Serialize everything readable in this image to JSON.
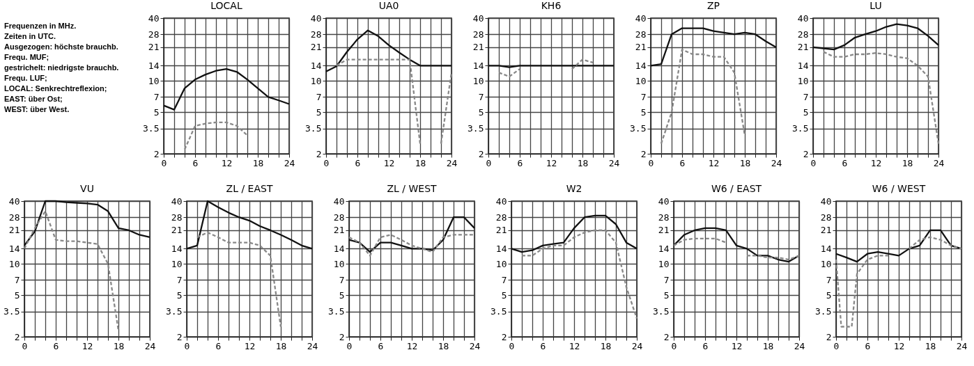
{
  "chart_data": [
    {
      "type": "other",
      "annotations": [
        "Frequenzen in MHz.",
        "Zeiten in UTC.",
        "Ausgezogen: höchste brauchb. Frequ. MUF;",
        "gestrichelt: niedrigste brauchb. Frequ. LUF;",
        "LOCAL: Senkrechtreflexion;",
        "EAST: über Ost;",
        "WEST: über West."
      ]
    },
    {
      "type": "line",
      "log": "y",
      "title": "LOCAL",
      "x": [
        0,
        2,
        4,
        6,
        8,
        10,
        12,
        14,
        16,
        18,
        20,
        22,
        24
      ],
      "series": [
        {
          "color": "#111111",
          "line_style": "solid",
          "values": [
            5.8,
            5.3,
            8.5,
            10.3,
            11.5,
            12.5,
            13,
            12.2,
            10.3,
            8.5,
            7,
            6.5,
            6
          ]
        },
        {
          "color": "#888888",
          "line_style": "dashed",
          "values": [
            null,
            null,
            2.2,
            3.7,
            3.9,
            4,
            4,
            3.7,
            3,
            null,
            null,
            null,
            null
          ]
        }
      ],
      "xlim": [
        0,
        24
      ],
      "xticks": [
        0,
        {
          "value": 2,
          "label": null
        },
        {
          "value": 4,
          "label": null
        },
        6,
        {
          "value": 8,
          "label": null
        },
        {
          "value": 10,
          "label": null
        },
        12,
        {
          "value": 14,
          "label": null
        },
        {
          "value": 16,
          "label": null
        },
        18,
        {
          "value": 20,
          "label": null
        },
        {
          "value": 22,
          "label": null
        },
        24
      ],
      "ylim": [
        2,
        40
      ],
      "yticks": [
        2,
        3.5,
        5,
        7,
        10,
        14,
        21,
        28,
        40
      ],
      "grid": true
    },
    {
      "type": "line",
      "log": "y",
      "title": "UA0",
      "x": [
        0,
        2,
        4,
        6,
        8,
        10,
        12,
        14,
        16,
        18,
        20,
        22,
        24
      ],
      "series": [
        {
          "color": "#111111",
          "line_style": "solid",
          "values": [
            12.3,
            13.8,
            19,
            25,
            30.5,
            26.8,
            22,
            18.7,
            16,
            14,
            14,
            14,
            14
          ]
        },
        {
          "color": "#888888",
          "line_style": "dashed",
          "values": [
            null,
            14,
            16,
            16,
            16,
            16,
            16,
            16,
            16,
            2.5,
            null,
            2.5,
            12
          ]
        }
      ],
      "xlim": [
        0,
        24
      ],
      "xticks": [
        0,
        {
          "value": 2,
          "label": null
        },
        {
          "value": 4,
          "label": null
        },
        6,
        {
          "value": 8,
          "label": null
        },
        {
          "value": 10,
          "label": null
        },
        12,
        {
          "value": 14,
          "label": null
        },
        {
          "value": 16,
          "label": null
        },
        18,
        {
          "value": 20,
          "label": null
        },
        {
          "value": 22,
          "label": null
        },
        24
      ],
      "ylim": [
        2,
        40
      ],
      "yticks": [
        2,
        3.5,
        5,
        7,
        10,
        14,
        21,
        28,
        40
      ],
      "grid": true
    },
    {
      "type": "line",
      "log": "y",
      "title": "KH6",
      "x": [
        0,
        2,
        4,
        6,
        8,
        10,
        12,
        14,
        16,
        18,
        20,
        22,
        24
      ],
      "series": [
        {
          "color": "#111111",
          "line_style": "solid",
          "values": [
            14,
            14,
            13.5,
            14,
            14,
            14,
            14,
            14,
            14,
            14,
            14,
            14,
            14
          ]
        },
        {
          "color": "#888888",
          "line_style": "dashed",
          "values": [
            null,
            12,
            11,
            13,
            null,
            null,
            null,
            null,
            13,
            16,
            15,
            null,
            null
          ]
        }
      ],
      "xlim": [
        0,
        24
      ],
      "xticks": [
        0,
        {
          "value": 2,
          "label": null
        },
        {
          "value": 4,
          "label": null
        },
        6,
        {
          "value": 8,
          "label": null
        },
        {
          "value": 10,
          "label": null
        },
        12,
        {
          "value": 14,
          "label": null
        },
        {
          "value": 16,
          "label": null
        },
        18,
        {
          "value": 20,
          "label": null
        },
        {
          "value": 22,
          "label": null
        },
        24
      ],
      "ylim": [
        2,
        40
      ],
      "yticks": [
        2,
        3.5,
        5,
        7,
        10,
        14,
        21,
        28,
        40
      ],
      "grid": true
    },
    {
      "type": "line",
      "log": "y",
      "title": "ZP",
      "x": [
        0,
        2,
        4,
        6,
        8,
        10,
        12,
        14,
        16,
        18,
        20,
        22,
        24
      ],
      "series": [
        {
          "color": "#111111",
          "line_style": "solid",
          "values": [
            14,
            14.5,
            28,
            32,
            32,
            32,
            30,
            29,
            28,
            29,
            28,
            24,
            21
          ]
        },
        {
          "color": "#888888",
          "line_style": "dashed",
          "values": [
            null,
            2.5,
            5,
            20,
            18,
            18,
            17,
            17,
            12,
            3,
            null,
            null,
            null
          ]
        }
      ],
      "xlim": [
        0,
        24
      ],
      "xticks": [
        0,
        {
          "value": 2,
          "label": null
        },
        {
          "value": 4,
          "label": null
        },
        6,
        {
          "value": 8,
          "label": null
        },
        {
          "value": 10,
          "label": null
        },
        12,
        {
          "value": 14,
          "label": null
        },
        {
          "value": 16,
          "label": null
        },
        18,
        {
          "value": 20,
          "label": null
        },
        {
          "value": 22,
          "label": null
        },
        24
      ],
      "ylim": [
        2,
        40
      ],
      "yticks": [
        2,
        3.5,
        5,
        7,
        10,
        14,
        21,
        28,
        40
      ],
      "grid": true
    },
    {
      "type": "line",
      "log": "y",
      "title": "LU",
      "x": [
        0,
        2,
        4,
        6,
        8,
        10,
        12,
        14,
        16,
        18,
        20,
        22,
        24
      ],
      "series": [
        {
          "color": "#111111",
          "line_style": "solid",
          "values": [
            21,
            20.5,
            20,
            22,
            26,
            28,
            30,
            33,
            35,
            34,
            32,
            27,
            22
          ]
        },
        {
          "color": "#888888",
          "line_style": "dashed",
          "values": [
            null,
            19,
            17,
            17,
            18,
            18,
            18.5,
            18,
            17,
            16.5,
            14,
            11,
            2.5
          ]
        }
      ],
      "xlim": [
        0,
        24
      ],
      "xticks": [
        0,
        {
          "value": 2,
          "label": null
        },
        {
          "value": 4,
          "label": null
        },
        6,
        {
          "value": 8,
          "label": null
        },
        {
          "value": 10,
          "label": null
        },
        12,
        {
          "value": 14,
          "label": null
        },
        {
          "value": 16,
          "label": null
        },
        18,
        {
          "value": 20,
          "label": null
        },
        {
          "value": 22,
          "label": null
        },
        24
      ],
      "ylim": [
        2,
        40
      ],
      "yticks": [
        2,
        3.5,
        5,
        7,
        10,
        14,
        21,
        28,
        40
      ],
      "grid": true
    },
    {
      "type": "line",
      "log": "y",
      "title": "VU",
      "x": [
        0,
        2,
        4,
        6,
        8,
        10,
        12,
        14,
        16,
        18,
        20,
        22,
        24
      ],
      "series": [
        {
          "color": "#111111",
          "line_style": "solid",
          "values": [
            15,
            20.5,
            40,
            40,
            39,
            38.5,
            38,
            37,
            32,
            22,
            21,
            19,
            18
          ]
        },
        {
          "color": "#888888",
          "line_style": "dashed",
          "values": [
            14,
            22,
            32,
            17,
            16.5,
            16.5,
            16,
            15.5,
            10,
            2.3,
            null,
            null,
            null
          ]
        }
      ],
      "xlim": [
        0,
        24
      ],
      "xticks": [
        0,
        {
          "value": 2,
          "label": null
        },
        {
          "value": 4,
          "label": null
        },
        6,
        {
          "value": 8,
          "label": null
        },
        {
          "value": 10,
          "label": null
        },
        12,
        {
          "value": 14,
          "label": null
        },
        {
          "value": 16,
          "label": null
        },
        18,
        {
          "value": 20,
          "label": null
        },
        {
          "value": 22,
          "label": null
        },
        24
      ],
      "ylim": [
        2,
        40
      ],
      "yticks": [
        2,
        3.5,
        5,
        7,
        10,
        14,
        21,
        28,
        40
      ],
      "grid": true
    },
    {
      "type": "line",
      "log": "y",
      "title": "ZL / EAST",
      "x": [
        0,
        2,
        4,
        6,
        8,
        10,
        12,
        14,
        16,
        18,
        20,
        22,
        24
      ],
      "series": [
        {
          "color": "#111111",
          "line_style": "solid",
          "values": [
            14,
            15,
            40,
            35,
            31,
            28,
            26,
            23,
            21,
            19,
            17,
            15,
            14
          ]
        },
        {
          "color": "#888888",
          "line_style": "dashed",
          "values": [
            null,
            18,
            20,
            18,
            16,
            16,
            16,
            15,
            12,
            2.5,
            null,
            null,
            null
          ]
        }
      ],
      "xlim": [
        0,
        24
      ],
      "xticks": [
        0,
        {
          "value": 2,
          "label": null
        },
        {
          "value": 4,
          "label": null
        },
        6,
        {
          "value": 8,
          "label": null
        },
        {
          "value": 10,
          "label": null
        },
        12,
        {
          "value": 14,
          "label": null
        },
        {
          "value": 16,
          "label": null
        },
        18,
        {
          "value": 20,
          "label": null
        },
        {
          "value": 22,
          "label": null
        },
        24
      ],
      "ylim": [
        2,
        40
      ],
      "yticks": [
        2,
        3.5,
        5,
        7,
        10,
        14,
        21,
        28,
        40
      ],
      "grid": true
    },
    {
      "type": "line",
      "log": "y",
      "title": "ZL / WEST",
      "x": [
        0,
        2,
        4,
        6,
        8,
        10,
        12,
        14,
        16,
        18,
        20,
        22,
        24
      ],
      "series": [
        {
          "color": "#111111",
          "line_style": "solid",
          "values": [
            17,
            16,
            13,
            16,
            16,
            15,
            14,
            14,
            13.5,
            17,
            28,
            28,
            22
          ]
        },
        {
          "color": "#888888",
          "line_style": "dashed",
          "values": [
            18,
            16,
            12,
            18,
            19,
            17,
            15,
            14,
            13,
            18,
            19,
            19,
            19
          ]
        }
      ],
      "xlim": [
        0,
        24
      ],
      "xticks": [
        0,
        {
          "value": 2,
          "label": null
        },
        {
          "value": 4,
          "label": null
        },
        6,
        {
          "value": 8,
          "label": null
        },
        {
          "value": 10,
          "label": null
        },
        12,
        {
          "value": 14,
          "label": null
        },
        {
          "value": 16,
          "label": null
        },
        18,
        {
          "value": 20,
          "label": null
        },
        {
          "value": 22,
          "label": null
        },
        24
      ],
      "ylim": [
        2,
        40
      ],
      "yticks": [
        2,
        3.5,
        5,
        7,
        10,
        14,
        21,
        28,
        40
      ],
      "grid": true
    },
    {
      "type": "line",
      "log": "y",
      "title": "W2",
      "x": [
        0,
        2,
        4,
        6,
        8,
        10,
        12,
        14,
        16,
        18,
        20,
        22,
        24
      ],
      "series": [
        {
          "color": "#111111",
          "line_style": "solid",
          "values": [
            14,
            13,
            13.5,
            15,
            15.5,
            16,
            22,
            28,
            29,
            29,
            24,
            16,
            14
          ]
        },
        {
          "color": "#888888",
          "line_style": "dashed",
          "values": [
            null,
            12,
            12,
            14,
            15,
            15,
            18,
            20,
            21,
            21,
            16,
            6,
            3
          ]
        }
      ],
      "xlim": [
        0,
        24
      ],
      "xticks": [
        0,
        {
          "value": 2,
          "label": null
        },
        {
          "value": 4,
          "label": null
        },
        6,
        {
          "value": 8,
          "label": null
        },
        {
          "value": 10,
          "label": null
        },
        12,
        {
          "value": 14,
          "label": null
        },
        {
          "value": 16,
          "label": null
        },
        18,
        {
          "value": 20,
          "label": null
        },
        {
          "value": 22,
          "label": null
        },
        24
      ],
      "ylim": [
        2,
        40
      ],
      "yticks": [
        2,
        3.5,
        5,
        7,
        10,
        14,
        21,
        28,
        40
      ],
      "grid": true
    },
    {
      "type": "line",
      "log": "y",
      "title": "W6 / EAST",
      "x": [
        0,
        2,
        4,
        6,
        8,
        10,
        12,
        14,
        16,
        18,
        20,
        22,
        24
      ],
      "series": [
        {
          "color": "#111111",
          "line_style": "solid",
          "values": [
            15,
            19,
            21,
            22,
            22,
            21,
            15,
            14,
            12,
            12,
            11,
            10.5,
            12
          ]
        },
        {
          "color": "#888888",
          "line_style": "dashed",
          "values": [
            15,
            17,
            17.5,
            17.5,
            17.5,
            16,
            null,
            12,
            12,
            11.5,
            11.5,
            11,
            12
          ]
        }
      ],
      "xlim": [
        0,
        24
      ],
      "xticks": [
        0,
        {
          "value": 2,
          "label": null
        },
        {
          "value": 4,
          "label": null
        },
        6,
        {
          "value": 8,
          "label": null
        },
        {
          "value": 10,
          "label": null
        },
        12,
        {
          "value": 14,
          "label": null
        },
        {
          "value": 16,
          "label": null
        },
        18,
        {
          "value": 20,
          "label": null
        },
        {
          "value": 22,
          "label": null
        },
        24
      ],
      "ylim": [
        2,
        40
      ],
      "yticks": [
        2,
        3.5,
        5,
        7,
        10,
        14,
        21,
        28,
        40
      ],
      "grid": true
    },
    {
      "type": "line",
      "log": "y",
      "title": "W6 / WEST",
      "x": [
        0,
        2,
        4,
        6,
        8,
        10,
        12,
        14,
        16,
        18,
        20,
        22,
        24
      ],
      "series": [
        {
          "color": "#111111",
          "line_style": "solid",
          "values": [
            12.5,
            11.5,
            10.5,
            12.5,
            13,
            12.5,
            12,
            14,
            15,
            21,
            21,
            15,
            14
          ]
        },
        {
          "color": "#888888",
          "line_style": "dashed",
          "x": [
            0,
            1,
            3,
            4,
            6,
            8,
            10,
            12,
            14,
            16,
            18,
            20,
            22,
            24
          ],
          "values": [
            11,
            2.5,
            2.5,
            8,
            11,
            12,
            12,
            null,
            14,
            17,
            18,
            17,
            15,
            14
          ]
        }
      ],
      "xlim": [
        0,
        24
      ],
      "xticks": [
        0,
        {
          "value": 2,
          "label": null
        },
        {
          "value": 4,
          "label": null
        },
        6,
        {
          "value": 8,
          "label": null
        },
        {
          "value": 10,
          "label": null
        },
        12,
        {
          "value": 14,
          "label": null
        },
        {
          "value": 16,
          "label": null
        },
        18,
        {
          "value": 20,
          "label": null
        },
        {
          "value": 22,
          "label": null
        },
        24
      ],
      "ylim": [
        2,
        40
      ],
      "yticks": [
        2,
        3.5,
        5,
        7,
        10,
        14,
        21,
        28,
        40
      ],
      "grid": true
    }
  ]
}
